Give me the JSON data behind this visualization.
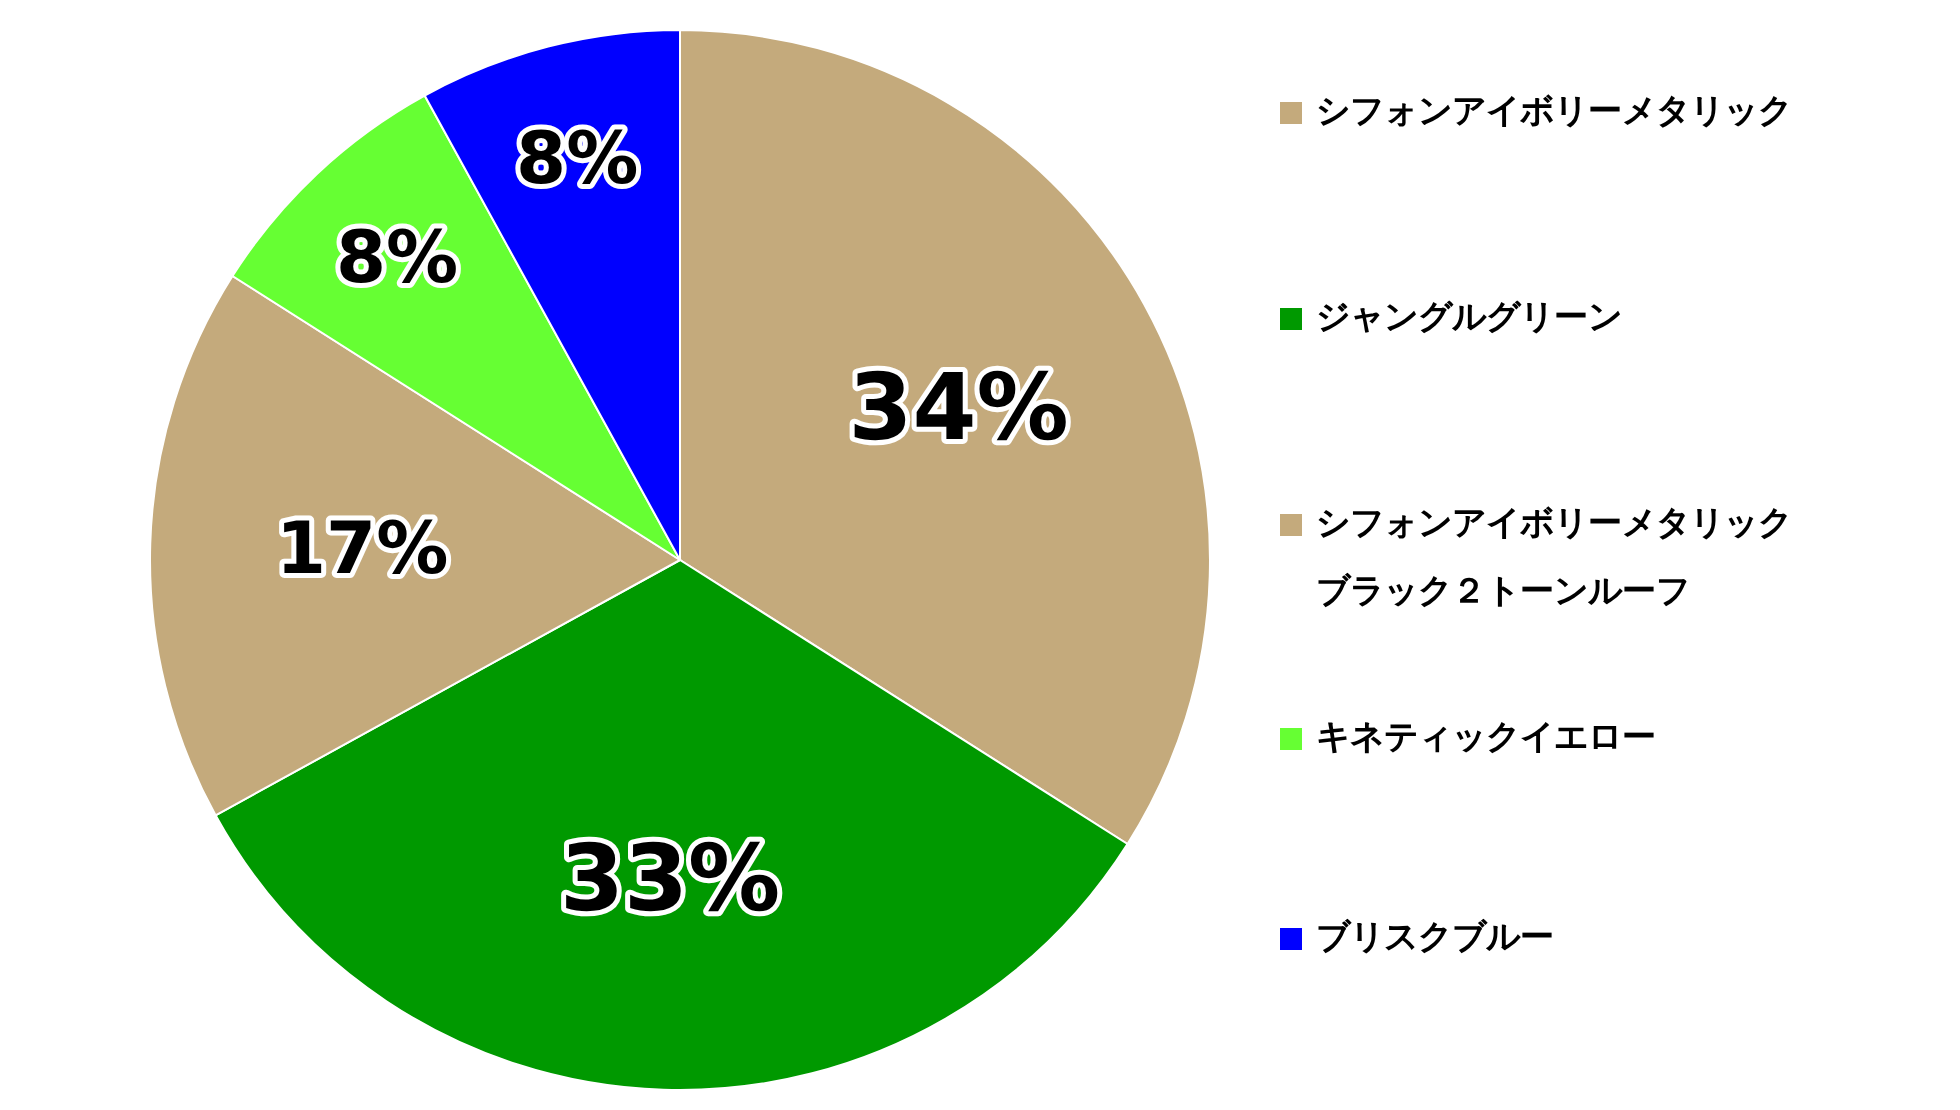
{
  "chart_data": {
    "type": "pie",
    "categories": [
      "シフォンアイボリーメタリック",
      "ジャングルグリーン",
      "シフォンアイボリーメタリックブラック２トーンルーフ",
      "キネティックイエロー",
      "ブリスクブルー"
    ],
    "values": [
      34,
      33,
      17,
      8,
      8
    ],
    "colors": [
      "#c4aa7c",
      "#009900",
      "#c4aa7c",
      "#66ff33",
      "#0000ff"
    ],
    "value_labels": [
      "34%",
      "33%",
      "17%",
      "8%",
      "8%"
    ],
    "legend": "right"
  }
}
